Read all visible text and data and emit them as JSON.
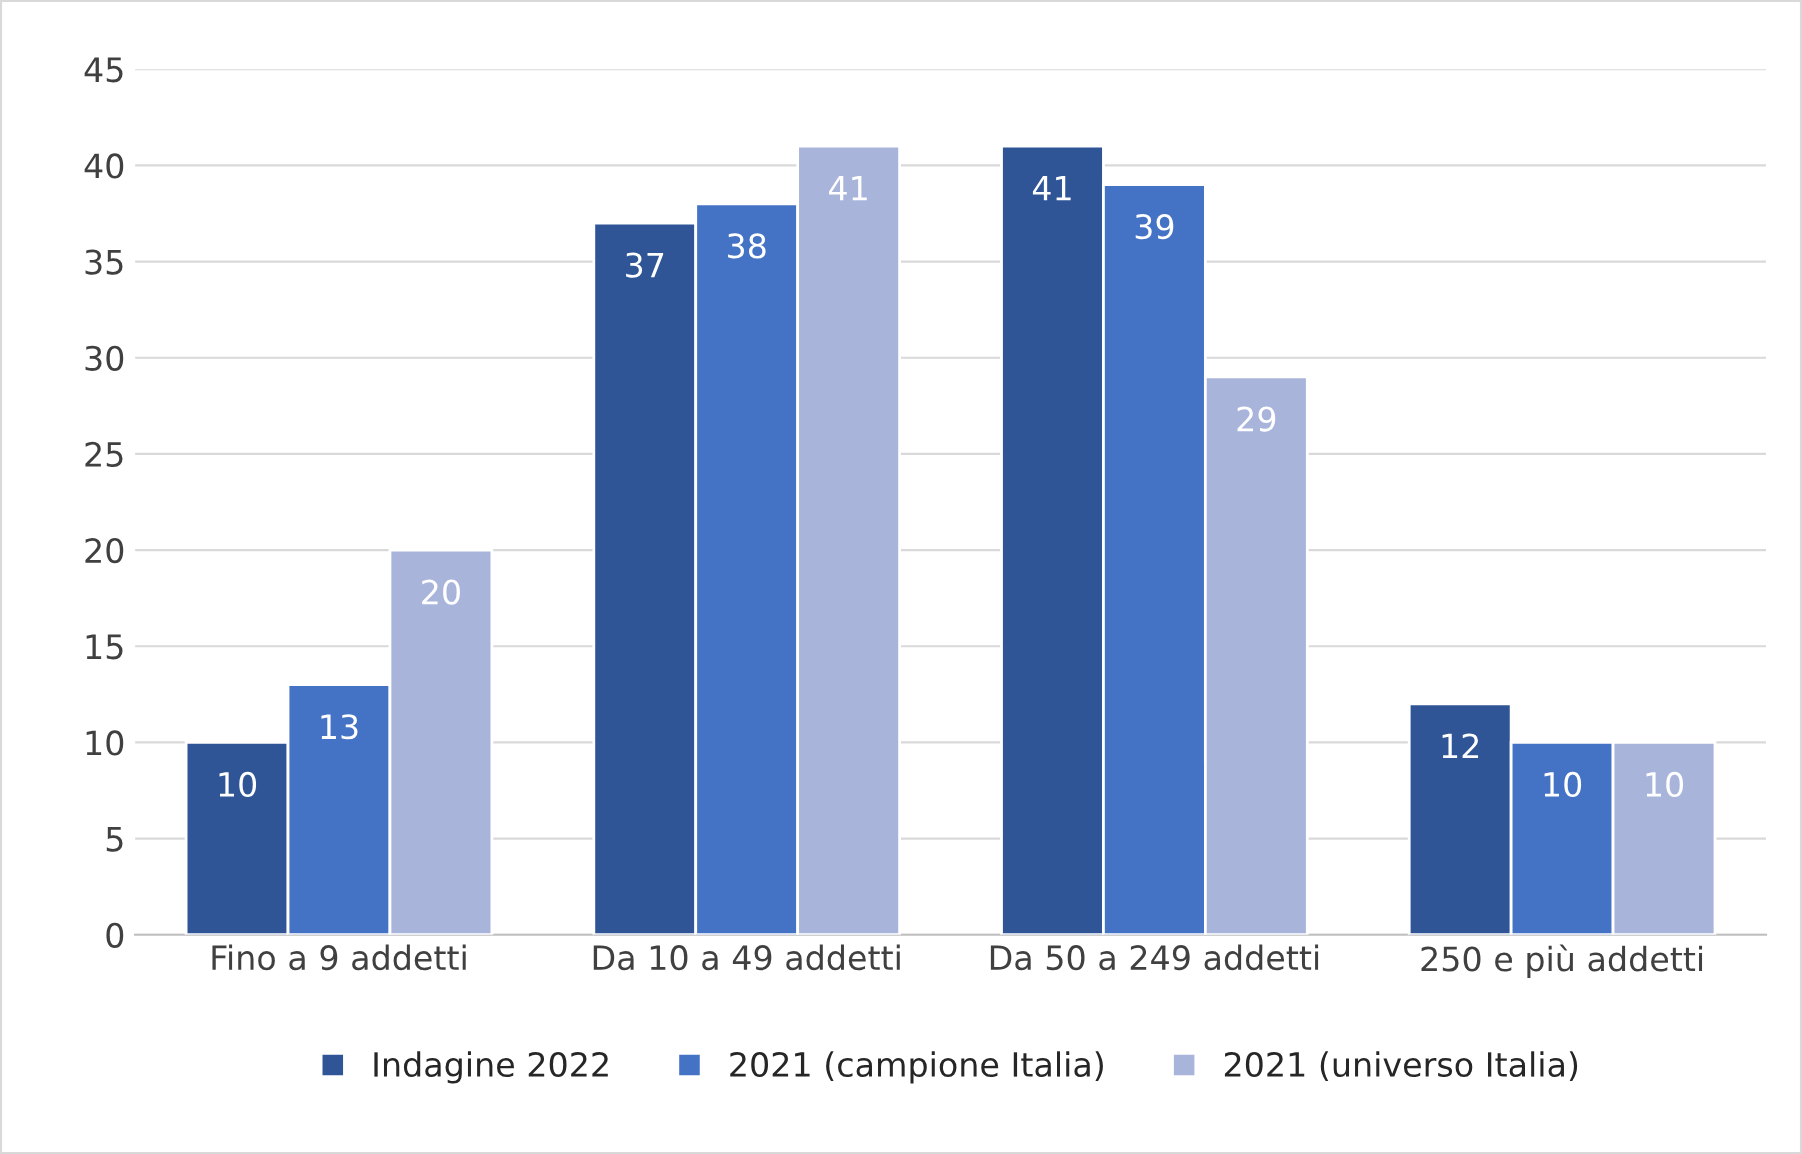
{
  "chart_data": {
    "type": "bar",
    "categories": [
      "Fino a 9 addetti",
      "Da 10 a 49 addetti",
      "Da 50 a 249 addetti",
      "250 e più addetti"
    ],
    "series": [
      {
        "name": "Indagine 2022",
        "color": "#2f5597",
        "values": [
          10,
          37,
          41,
          12
        ]
      },
      {
        "name": "2021 (campione Italia)",
        "color": "#4472c4",
        "values": [
          13,
          38,
          39,
          10
        ]
      },
      {
        "name": "2021 (universo Italia)",
        "color": "#a9b4db",
        "values": [
          20,
          41,
          29,
          10
        ]
      }
    ],
    "ylim": [
      0,
      45
    ],
    "yticks": [
      0,
      5,
      10,
      15,
      20,
      25,
      30,
      35,
      40,
      45
    ],
    "grid": "y",
    "legend": "bottom",
    "data_labels": true
  }
}
